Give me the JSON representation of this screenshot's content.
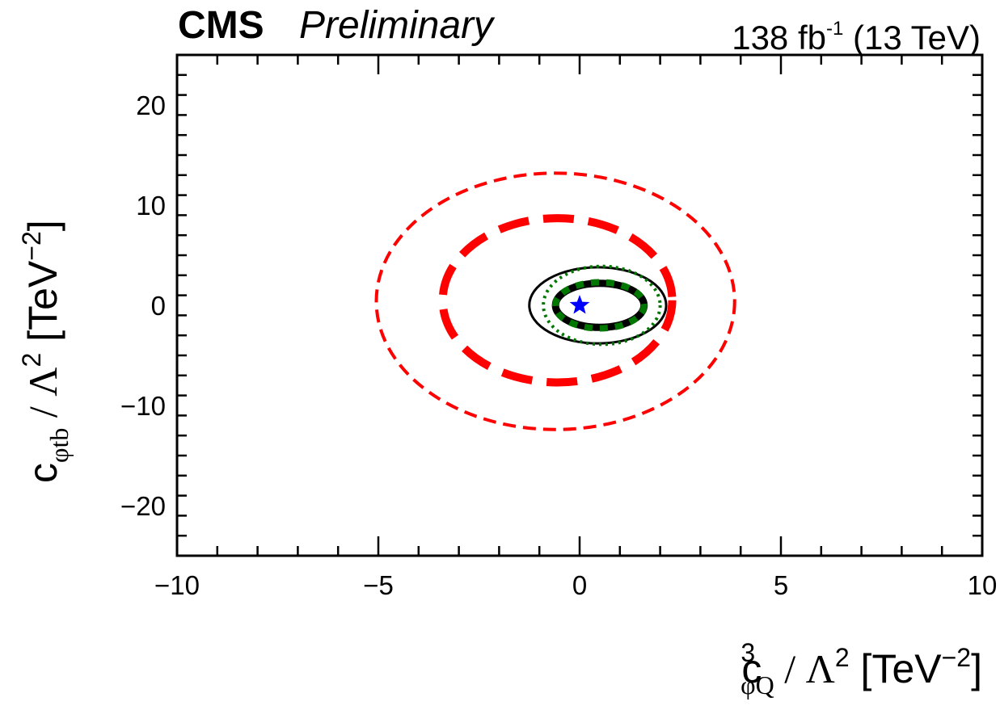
{
  "header": {
    "experiment": "CMS",
    "status": "Preliminary",
    "lumi_value": "138 fb",
    "lumi_exp": "-1",
    "energy": "(13 TeV)"
  },
  "chart_data": {
    "type": "contour",
    "xlim": [
      -10,
      10
    ],
    "ylim": [
      -25,
      25
    ],
    "x_ticks": [
      -10,
      -5,
      0,
      5,
      10
    ],
    "y_ticks": [
      -20,
      -10,
      0,
      10,
      20
    ],
    "x_tick_labels": [
      "−10",
      "−5",
      "0",
      "5",
      "10"
    ],
    "y_tick_labels": [
      "−20",
      "−10",
      "0",
      "10",
      "20"
    ],
    "xlabel": {
      "base": "c",
      "sup": "3",
      "sub": "φQ",
      "rest": " / Λ",
      "pow": "2",
      "unit": " [TeV",
      "unit_pow": "−2",
      "close": "]"
    },
    "ylabel": {
      "base": "c",
      "sub": "φtb",
      "rest": " / Λ",
      "pow": "2",
      "unit": " [TeV",
      "unit_pow": "−2",
      "close": "]"
    },
    "contours": [
      {
        "name": "outer red thin dashed",
        "color": "#ff0000",
        "style": "dashed-thin",
        "cx": -0.6,
        "cy": 0.4,
        "rx": 4.45,
        "ry": 12.8
      },
      {
        "name": "red thick dashed",
        "color": "#ff0000",
        "style": "dashed-thick",
        "cx": -0.55,
        "cy": 0.5,
        "rx": 2.85,
        "ry": 8.2
      },
      {
        "name": "black thin solid",
        "color": "#000000",
        "style": "solid-thin",
        "cx": 0.45,
        "cy": 0.0,
        "rx": 1.7,
        "ry": 3.8
      },
      {
        "name": "green dotted thin",
        "color": "#007700",
        "style": "dotted-thin",
        "cx": 0.55,
        "cy": 0.0,
        "rx": 1.45,
        "ry": 3.9
      },
      {
        "name": "black thick solid",
        "color": "#000000",
        "style": "solid-thick",
        "cx": 0.5,
        "cy": 0.0,
        "rx": 1.1,
        "ry": 2.2
      },
      {
        "name": "green thick dashed",
        "color": "#007700",
        "style": "dashed-green-thick",
        "cx": 0.5,
        "cy": 0.0,
        "rx": 1.1,
        "ry": 2.3
      }
    ],
    "best_fit": {
      "x": 0.0,
      "y": 0.0,
      "marker": "star",
      "color": "#0000ff"
    }
  }
}
